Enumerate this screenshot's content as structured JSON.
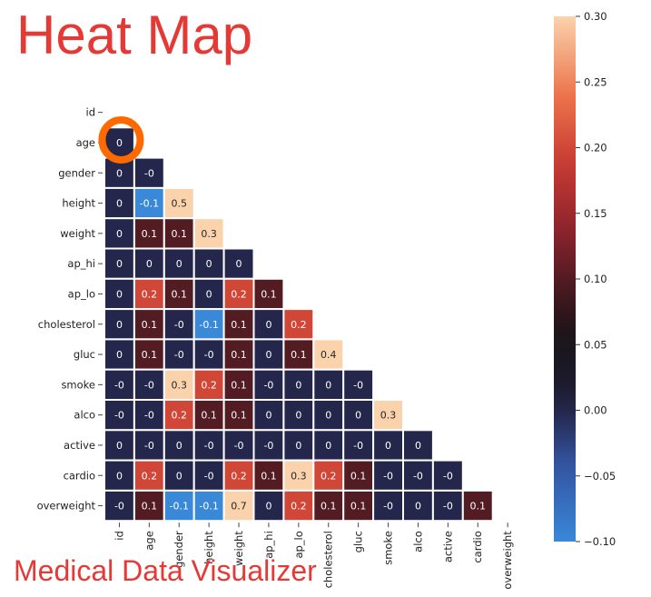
{
  "overlay": {
    "title": "Heat Map",
    "subtitle": "Medical Data Visualizer",
    "title_color": "#e53935",
    "highlight_color": "#ff6a00"
  },
  "chart_data": {
    "type": "heatmap",
    "mask": "upper-triangle",
    "labels": [
      "id",
      "age",
      "gender",
      "height",
      "weight",
      "ap_hi",
      "ap_lo",
      "cholesterol",
      "gluc",
      "smoke",
      "alco",
      "active",
      "cardio",
      "overweight"
    ],
    "rows": [
      [],
      [
        "0"
      ],
      [
        "0",
        "-0"
      ],
      [
        "0",
        "-0.1",
        "0.5"
      ],
      [
        "0",
        "0.1",
        "0.1",
        "0.3"
      ],
      [
        "0",
        "0",
        "0",
        "0",
        "0"
      ],
      [
        "0",
        "0.2",
        "0.1",
        "0",
        "0.2",
        "0.1"
      ],
      [
        "0",
        "0.1",
        "-0",
        "-0.1",
        "0.1",
        "0",
        "0.2"
      ],
      [
        "0",
        "0.1",
        "-0",
        "-0",
        "0.1",
        "0",
        "0.1",
        "0.4"
      ],
      [
        "-0",
        "-0",
        "0.3",
        "0.2",
        "0.1",
        "-0",
        "0",
        "0",
        "-0"
      ],
      [
        "-0",
        "-0",
        "0.2",
        "0.1",
        "0.1",
        "0",
        "0",
        "0",
        "0",
        "0.3"
      ],
      [
        "0",
        "-0",
        "0",
        "-0",
        "-0",
        "-0",
        "0",
        "0",
        "-0",
        "0",
        "0"
      ],
      [
        "0",
        "0.2",
        "0",
        "-0",
        "0.2",
        "0.1",
        "0.3",
        "0.2",
        "0.1",
        "-0",
        "-0",
        "-0"
      ],
      [
        "-0",
        "0.1",
        "-0.1",
        "-0.1",
        "0.7",
        "0",
        "0.2",
        "0.1",
        "0.1",
        "-0",
        "0",
        "-0",
        "0.1"
      ]
    ],
    "colorbar": {
      "min": -0.1,
      "max": 0.3,
      "ticks": [
        "0.30",
        "0.25",
        "0.20",
        "0.15",
        "0.10",
        "0.05",
        "0.00",
        "−0.05",
        "−0.10"
      ],
      "tick_values": [
        0.3,
        0.25,
        0.2,
        0.15,
        0.1,
        0.05,
        0.0,
        -0.05,
        -0.1
      ]
    },
    "colormap": "icefire",
    "annotated": true
  }
}
